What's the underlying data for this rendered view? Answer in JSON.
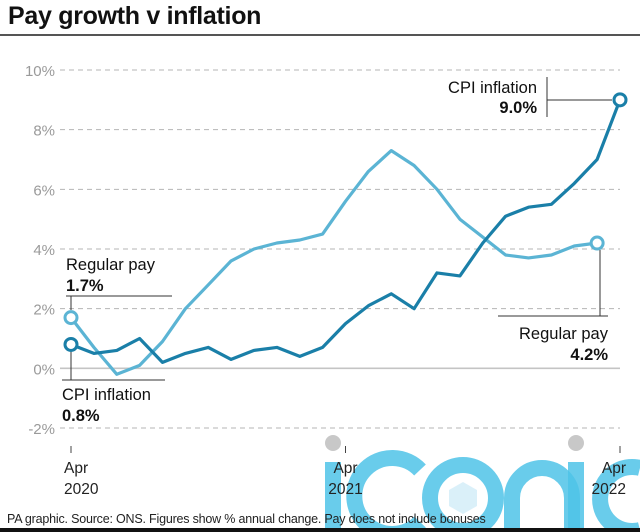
{
  "header": {
    "title": "Pay growth v inflation"
  },
  "footer": {
    "source": "PA graphic. Source: ONS. Figures show % annual change. Pay does not include bonuses"
  },
  "watermark": {
    "text": "iconic",
    "color": "#4fc3e8",
    "dot_color": "#c8c8c8"
  },
  "chart_data": {
    "type": "line",
    "title": "Pay growth v inflation",
    "xlabel": "",
    "ylabel": "% annual change",
    "ylim": [
      -2,
      10
    ],
    "yticks": [
      -2,
      0,
      2,
      4,
      6,
      8,
      10
    ],
    "ytick_labels": [
      "-2%",
      "0%",
      "2%",
      "4%",
      "6%",
      "8%",
      "10%"
    ],
    "grid": "horizontal dashed",
    "x": [
      "Apr 2020",
      "May 2020",
      "Jun 2020",
      "Jul 2020",
      "Aug 2020",
      "Sep 2020",
      "Oct 2020",
      "Nov 2020",
      "Dec 2020",
      "Jan 2021",
      "Feb 2021",
      "Mar 2021",
      "Apr 2021",
      "May 2021",
      "Jun 2021",
      "Jul 2021",
      "Aug 2021",
      "Sep 2021",
      "Oct 2021",
      "Nov 2021",
      "Dec 2021",
      "Jan 2022",
      "Feb 2022",
      "Mar 2022",
      "Apr 2022"
    ],
    "xticks": [
      {
        "index": 0,
        "line1": "Apr",
        "line2": "2020"
      },
      {
        "index": 12,
        "line1": "Apr",
        "line2": "2021"
      },
      {
        "index": 24,
        "line1": "Apr",
        "line2": "2022"
      }
    ],
    "series": [
      {
        "name": "CPI inflation",
        "color": "#1a7fa8",
        "values": [
          0.8,
          0.5,
          0.6,
          1.0,
          0.2,
          0.5,
          0.7,
          0.3,
          0.6,
          0.7,
          0.4,
          0.7,
          1.5,
          2.1,
          2.5,
          2.0,
          3.2,
          3.1,
          4.2,
          5.1,
          5.4,
          5.5,
          6.2,
          7.0,
          9.0
        ],
        "start_label": {
          "name": "CPI inflation",
          "value": "0.8%"
        },
        "end_label": {
          "name": "CPI inflation",
          "value": "9.0%"
        }
      },
      {
        "name": "Regular pay",
        "color": "#5bb4d4",
        "values": [
          1.7,
          0.7,
          -0.2,
          0.1,
          0.9,
          2.0,
          2.8,
          3.6,
          4.0,
          4.2,
          4.3,
          4.5,
          5.6,
          6.6,
          7.3,
          6.8,
          6.0,
          5.0,
          4.4,
          3.8,
          3.7,
          3.8,
          4.1,
          4.2
        ],
        "start_label": {
          "name": "Regular pay",
          "value": "1.7%"
        },
        "end_label": {
          "name": "Regular pay",
          "value": "4.2%"
        }
      }
    ]
  }
}
